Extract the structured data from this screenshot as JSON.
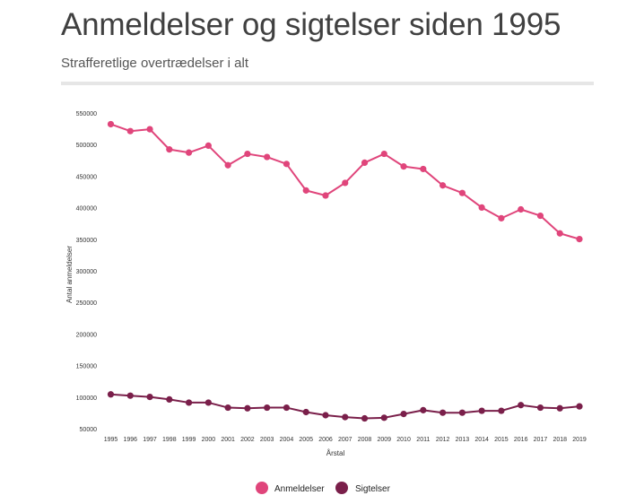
{
  "header": {
    "title": "Anmeldelser og sigtelser siden 1995",
    "subtitle": "Strafferetlige overtrædelser i alt"
  },
  "colors": {
    "anmeldelser": "#e0457b",
    "sigtelser": "#7a1f4a"
  },
  "chart_data": {
    "type": "line",
    "title": "Anmeldelser og sigtelser siden 1995",
    "subtitle": "Strafferetlige overtrædelser i alt",
    "xlabel": "Årstal",
    "ylabel": "Antal anmeldelser",
    "ylim": [
      50000,
      550000
    ],
    "yticks": [
      550000,
      500000,
      450000,
      400000,
      350000,
      300000,
      250000,
      200000,
      150000,
      100000,
      50000
    ],
    "x": [
      "1995",
      "1996",
      "1997",
      "1998",
      "1999",
      "2000",
      "2001",
      "2002",
      "2003",
      "2004",
      "2005",
      "2006",
      "2007",
      "2008",
      "2009",
      "2010",
      "2011",
      "2012",
      "2013",
      "2014",
      "2015",
      "2016",
      "2017",
      "2018",
      "2019"
    ],
    "legend_position": "bottom",
    "grid": false,
    "series": [
      {
        "name": "Anmeldelser",
        "values": [
          533000,
          522000,
          525000,
          493000,
          488000,
          499000,
          468000,
          486000,
          481000,
          470000,
          428000,
          420000,
          440000,
          472000,
          486000,
          466000,
          462000,
          436000,
          424000,
          401000,
          384000,
          398000,
          388000,
          360000,
          351000
        ]
      },
      {
        "name": "Sigtelser",
        "values": [
          105000,
          103000,
          101000,
          97000,
          92000,
          92000,
          84000,
          83000,
          84000,
          84000,
          77000,
          72000,
          69000,
          67000,
          68000,
          74000,
          80000,
          76000,
          76000,
          79000,
          79000,
          88000,
          84000,
          83000,
          86000
        ]
      }
    ]
  }
}
